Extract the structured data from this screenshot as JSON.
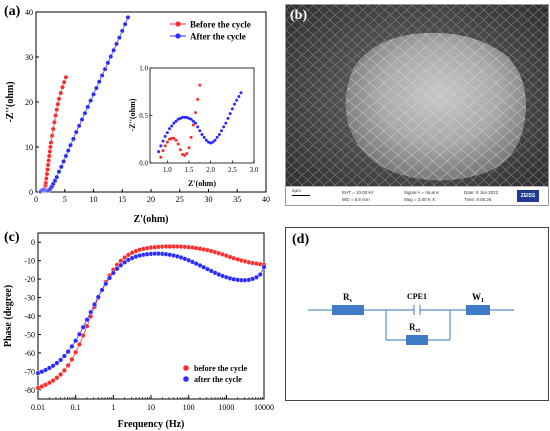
{
  "panels": {
    "a": "(a)",
    "b": "(b)",
    "c": "(c)",
    "d": "(d)"
  },
  "chart_data": [
    {
      "type": "scatter",
      "panel": "a",
      "xlabel": "Z'(ohm)",
      "ylabel": "-Z''(ohm)",
      "xlim": [
        0,
        40
      ],
      "ylim": [
        0,
        40
      ],
      "xticks": [
        "0",
        "5",
        "10",
        "15",
        "20",
        "25",
        "30",
        "35",
        "40"
      ],
      "yticks": [
        "0",
        "10",
        "20",
        "30",
        "40"
      ],
      "legend": "top-right",
      "series": [
        {
          "name": "Before the cycle",
          "color": "#ff2b2b",
          "x": [
            0.8,
            0.9,
            1.0,
            1.1,
            1.2,
            1.3,
            1.4,
            1.5,
            1.55,
            1.6,
            1.65,
            1.7,
            1.8,
            1.9,
            2.0,
            2.1,
            2.2,
            2.3,
            2.4,
            2.5,
            2.6,
            2.8,
            3.0,
            3.2,
            3.4,
            3.6,
            3.8,
            4.0,
            4.3,
            4.6,
            4.9,
            5.2
          ],
          "y": [
            0.05,
            0.2,
            0.3,
            0.35,
            0.33,
            0.25,
            0.2,
            0.35,
            0.6,
            1.0,
            1.5,
            2.0,
            3.0,
            4.0,
            5.0,
            6.0,
            7.0,
            8.0,
            9.0,
            10.0,
            11.0,
            12.5,
            14.0,
            15.5,
            17.0,
            18.3,
            19.5,
            20.7,
            22.0,
            23.3,
            24.4,
            25.5
          ]
        },
        {
          "name": "After the cycle",
          "color": "#2b2bff",
          "x": [
            0.8,
            1.0,
            1.2,
            1.4,
            1.6,
            1.8,
            2.0,
            2.2,
            2.4,
            2.6,
            2.8,
            3.0,
            3.3,
            3.6,
            4.0,
            4.4,
            4.8,
            5.2,
            5.6,
            6.0,
            6.5,
            7.0,
            7.5,
            8.0,
            8.5,
            9.0,
            9.5,
            10.0,
            10.5,
            11.0,
            11.5,
            12.0,
            12.5,
            13.0,
            13.5,
            14.0,
            14.5,
            15.0,
            15.5,
            16.0
          ],
          "y": [
            0.15,
            0.35,
            0.45,
            0.48,
            0.45,
            0.35,
            0.3,
            0.4,
            0.6,
            0.9,
            1.3,
            1.8,
            2.5,
            3.3,
            4.5,
            5.6,
            6.8,
            8.0,
            9.2,
            10.4,
            11.8,
            13.3,
            14.7,
            16.1,
            17.5,
            18.9,
            20.3,
            21.7,
            23.1,
            24.5,
            25.9,
            27.3,
            28.7,
            30.1,
            31.5,
            32.9,
            34.3,
            35.8,
            37.3,
            38.8
          ]
        }
      ],
      "inset": {
        "xlim": [
          0.6,
          3.0
        ],
        "ylim": [
          0,
          1.0
        ],
        "xticks": [
          "1.0",
          "1.5",
          "2.0",
          "2.5",
          "3.0"
        ],
        "yticks": [
          "0.0",
          "0.5",
          "1.0"
        ],
        "xlabel": "Z'(ohm)",
        "ylabel": "-Z''(ohm)",
        "series": [
          {
            "name": "Before the cycle",
            "x": [
              0.85,
              0.9,
              0.95,
              1.0,
              1.05,
              1.1,
              1.15,
              1.2,
              1.25,
              1.3,
              1.35,
              1.4,
              1.45,
              1.5,
              1.55,
              1.6,
              1.65,
              1.7,
              1.75
            ],
            "y": [
              0.06,
              0.13,
              0.18,
              0.22,
              0.25,
              0.26,
              0.26,
              0.24,
              0.2,
              0.14,
              0.09,
              0.08,
              0.1,
              0.16,
              0.27,
              0.4,
              0.53,
              0.67,
              0.82
            ]
          },
          {
            "name": "After the cycle",
            "x": [
              0.8,
              0.85,
              0.9,
              0.95,
              1.0,
              1.05,
              1.1,
              1.15,
              1.2,
              1.25,
              1.3,
              1.35,
              1.4,
              1.45,
              1.5,
              1.55,
              1.6,
              1.65,
              1.7,
              1.75,
              1.8,
              1.85,
              1.9,
              1.95,
              2.0,
              2.05,
              2.1,
              2.15,
              2.2,
              2.25,
              2.3,
              2.35,
              2.4,
              2.45,
              2.5,
              2.55,
              2.6,
              2.65,
              2.7
            ],
            "y": [
              0.12,
              0.18,
              0.23,
              0.28,
              0.32,
              0.36,
              0.39,
              0.42,
              0.44,
              0.46,
              0.47,
              0.48,
              0.48,
              0.48,
              0.47,
              0.46,
              0.44,
              0.42,
              0.38,
              0.34,
              0.3,
              0.27,
              0.24,
              0.22,
              0.21,
              0.22,
              0.24,
              0.27,
              0.3,
              0.34,
              0.38,
              0.42,
              0.47,
              0.52,
              0.57,
              0.62,
              0.66,
              0.7,
              0.74
            ]
          }
        ]
      }
    },
    {
      "type": "scatter",
      "panel": "c",
      "xlabel": "Frequency (Hz)",
      "ylabel": "Phase (degree)",
      "xscale": "log",
      "xlim": [
        0.01,
        10000
      ],
      "ylim": [
        -85,
        5
      ],
      "xticks": [
        "0.01",
        "0.1",
        "1",
        "10",
        "100",
        "1000",
        "10000"
      ],
      "yticks": [
        "0",
        "-10",
        "-20",
        "-30",
        "-40",
        "-50",
        "-60",
        "-70",
        "-80"
      ],
      "legend": "bottom-right",
      "series": [
        {
          "name": "before the cycle",
          "color": "#ff2b2b",
          "points": [
            [
              0.01,
              -79
            ],
            [
              0.0126,
              -78.2
            ],
            [
              0.0158,
              -77.3
            ],
            [
              0.02,
              -76.2
            ],
            [
              0.0251,
              -75
            ],
            [
              0.0316,
              -73.5
            ],
            [
              0.0398,
              -71.7
            ],
            [
              0.0501,
              -69.5
            ],
            [
              0.0631,
              -66.8
            ],
            [
              0.0794,
              -63.5
            ],
            [
              0.1,
              -59.7
            ],
            [
              0.126,
              -55.4
            ],
            [
              0.158,
              -50.6
            ],
            [
              0.2,
              -45.5
            ],
            [
              0.251,
              -40.3
            ],
            [
              0.316,
              -35.1
            ],
            [
              0.398,
              -30.2
            ],
            [
              0.501,
              -25.7
            ],
            [
              0.631,
              -21.6
            ],
            [
              0.794,
              -18
            ],
            [
              1,
              -14.9
            ],
            [
              1.26,
              -12.3
            ],
            [
              1.58,
              -10.1
            ],
            [
              2,
              -8.3
            ],
            [
              2.51,
              -6.9
            ],
            [
              3.16,
              -5.7
            ],
            [
              3.98,
              -4.8
            ],
            [
              5.01,
              -4.1
            ],
            [
              6.31,
              -3.6
            ],
            [
              7.94,
              -3.2
            ],
            [
              10,
              -2.9
            ],
            [
              12.6,
              -2.7
            ],
            [
              15.8,
              -2.5
            ],
            [
              20,
              -2.4
            ],
            [
              25.1,
              -2.3
            ],
            [
              31.6,
              -2.3
            ],
            [
              39.8,
              -2.3
            ],
            [
              50.1,
              -2.3
            ],
            [
              63.1,
              -2.4
            ],
            [
              79.4,
              -2.5
            ],
            [
              100,
              -2.7
            ],
            [
              126,
              -2.9
            ],
            [
              158,
              -3.2
            ],
            [
              200,
              -3.5
            ],
            [
              251,
              -3.9
            ],
            [
              316,
              -4.3
            ],
            [
              398,
              -4.8
            ],
            [
              501,
              -5.4
            ],
            [
              631,
              -6
            ],
            [
              794,
              -6.6
            ],
            [
              1000,
              -7.3
            ],
            [
              1260,
              -8
            ],
            [
              1580,
              -8.7
            ],
            [
              2000,
              -9.3
            ],
            [
              2510,
              -9.9
            ],
            [
              3160,
              -10.4
            ],
            [
              3980,
              -10.9
            ],
            [
              5010,
              -11.3
            ],
            [
              6310,
              -11.6
            ],
            [
              7940,
              -11.9
            ],
            [
              10000,
              -12.1
            ]
          ]
        },
        {
          "name": "after the cycle",
          "color": "#2b2bff",
          "points": [
            [
              0.01,
              -71
            ],
            [
              0.0126,
              -70.2
            ],
            [
              0.0158,
              -69.3
            ],
            [
              0.02,
              -68.2
            ],
            [
              0.0251,
              -67
            ],
            [
              0.0316,
              -65.5
            ],
            [
              0.0398,
              -63.8
            ],
            [
              0.0501,
              -61.7
            ],
            [
              0.0631,
              -59.3
            ],
            [
              0.0794,
              -56.5
            ],
            [
              0.1,
              -53.4
            ],
            [
              0.126,
              -49.9
            ],
            [
              0.158,
              -46.1
            ],
            [
              0.2,
              -42
            ],
            [
              0.251,
              -37.9
            ],
            [
              0.316,
              -33.7
            ],
            [
              0.398,
              -29.7
            ],
            [
              0.501,
              -25.9
            ],
            [
              0.631,
              -22.5
            ],
            [
              0.794,
              -19.4
            ],
            [
              1,
              -16.7
            ],
            [
              1.26,
              -14.4
            ],
            [
              1.58,
              -12.5
            ],
            [
              2,
              -10.9
            ],
            [
              2.51,
              -9.6
            ],
            [
              3.16,
              -8.6
            ],
            [
              3.98,
              -7.8
            ],
            [
              5.01,
              -7.2
            ],
            [
              6.31,
              -6.8
            ],
            [
              7.94,
              -6.5
            ],
            [
              10,
              -6.3
            ],
            [
              12.6,
              -6.2
            ],
            [
              15.8,
              -6.2
            ],
            [
              20,
              -6.3
            ],
            [
              25.1,
              -6.5
            ],
            [
              31.6,
              -6.8
            ],
            [
              39.8,
              -7.2
            ],
            [
              50.1,
              -7.7
            ],
            [
              63.1,
              -8.3
            ],
            [
              79.4,
              -9
            ],
            [
              100,
              -9.8
            ],
            [
              126,
              -10.7
            ],
            [
              158,
              -11.6
            ],
            [
              200,
              -12.6
            ],
            [
              251,
              -13.6
            ],
            [
              316,
              -14.6
            ],
            [
              398,
              -15.6
            ],
            [
              501,
              -16.6
            ],
            [
              631,
              -17.5
            ],
            [
              794,
              -18.3
            ],
            [
              1000,
              -19
            ],
            [
              1260,
              -19.6
            ],
            [
              1580,
              -20.1
            ],
            [
              2000,
              -20.4
            ],
            [
              2510,
              -20.6
            ],
            [
              3160,
              -20.6
            ],
            [
              3980,
              -20.4
            ],
            [
              5010,
              -19.9
            ],
            [
              6310,
              -19
            ],
            [
              7940,
              -17.5
            ],
            [
              10000,
              -13.5
            ]
          ]
        }
      ]
    }
  ],
  "sem": {
    "scale": "2µm",
    "col1": [
      "EHT = 10.00 kV",
      "WD = 8.6 mm"
    ],
    "col2": [
      "Signal A = InLens",
      "Mag = 3.00 K X"
    ],
    "col3": [
      "Date: 8 Jun 2022",
      "Time: 9:56:26"
    ],
    "logo": "ZEISS"
  },
  "circuit": {
    "labels": {
      "rs": "R",
      "rs_sub": "s",
      "cpe": "CPE1",
      "w": "W",
      "w_sub": "1",
      "rct": "R",
      "rct_sub": "ct"
    }
  }
}
